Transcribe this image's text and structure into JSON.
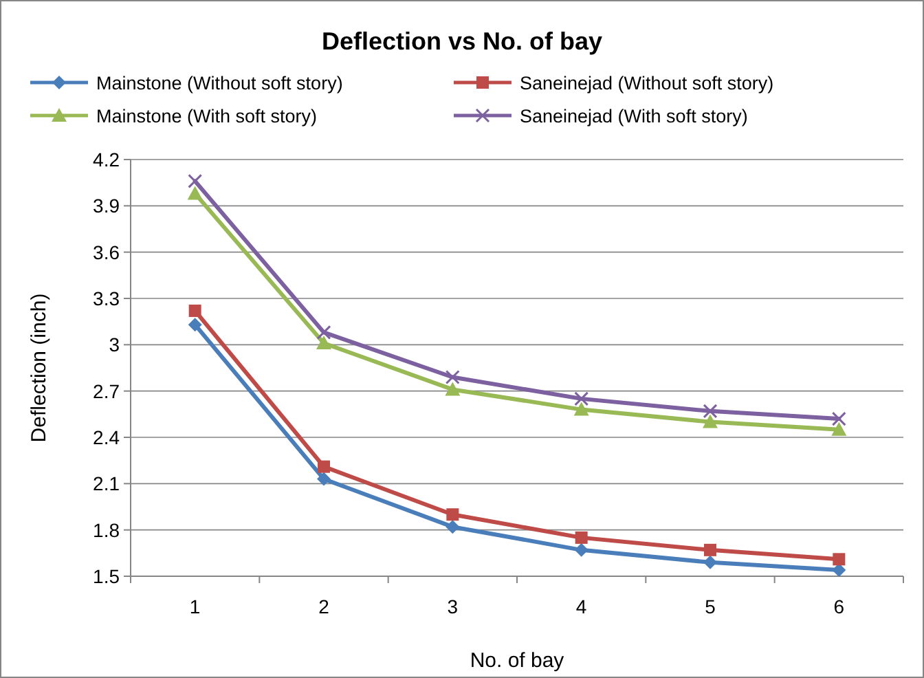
{
  "chart_data": {
    "type": "line",
    "title": "Deflection vs No. of bay",
    "xlabel": "No. of bay",
    "ylabel": "Deflection (inch)",
    "categories": [
      "1",
      "2",
      "3",
      "4",
      "5",
      "6"
    ],
    "series": [
      {
        "name": "Mainstone (Without soft story)",
        "color": "#4a7ebb",
        "marker": "diamond",
        "values": [
          3.13,
          2.13,
          1.82,
          1.67,
          1.59,
          1.54
        ]
      },
      {
        "name": "Saneinejad (Without soft story)",
        "color": "#be4b48",
        "marker": "square",
        "values": [
          3.22,
          2.21,
          1.9,
          1.75,
          1.67,
          1.61
        ]
      },
      {
        "name": "Mainstone (With soft story)",
        "color": "#98b954",
        "marker": "triangle",
        "values": [
          3.98,
          3.01,
          2.71,
          2.58,
          2.5,
          2.45
        ]
      },
      {
        "name": "Saneinejad (With soft story)",
        "color": "#7d60a0",
        "marker": "cross",
        "values": [
          4.06,
          3.08,
          2.79,
          2.65,
          2.57,
          2.52
        ]
      }
    ],
    "ylim": [
      1.5,
      4.2
    ],
    "yticks": [
      1.5,
      1.8,
      2.1,
      2.4,
      2.7,
      3,
      3.3,
      3.6,
      3.9,
      4.2
    ],
    "grid": "y",
    "legend": "top"
  }
}
